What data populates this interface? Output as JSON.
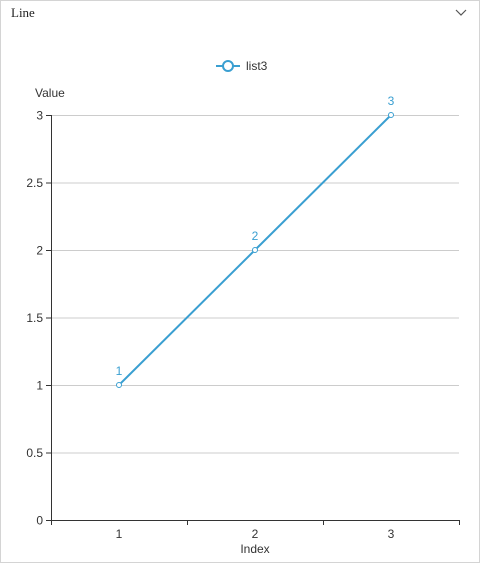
{
  "panel": {
    "title": "Line"
  },
  "icons": {
    "collapse": "chevron-down-icon",
    "legend_marker": "circle-line-marker-icon"
  },
  "colors": {
    "series": "#3a9fd1",
    "grid": "#cccccc",
    "axis": "#333333",
    "text": "#333333"
  },
  "chart_data": {
    "type": "line",
    "title": "",
    "xlabel": "Index",
    "ylabel": "Value",
    "x": [
      1,
      2,
      3
    ],
    "ylim": [
      0,
      3
    ],
    "yticks": [
      "0",
      "0.5",
      "1",
      "1.5",
      "2",
      "2.5",
      "3"
    ],
    "xticks": [
      "1",
      "2",
      "3"
    ],
    "grid": true,
    "legend": "top-center",
    "series": [
      {
        "name": "list3",
        "values": [
          1,
          2,
          3
        ],
        "labels": [
          "1",
          "2",
          "3"
        ]
      }
    ]
  }
}
